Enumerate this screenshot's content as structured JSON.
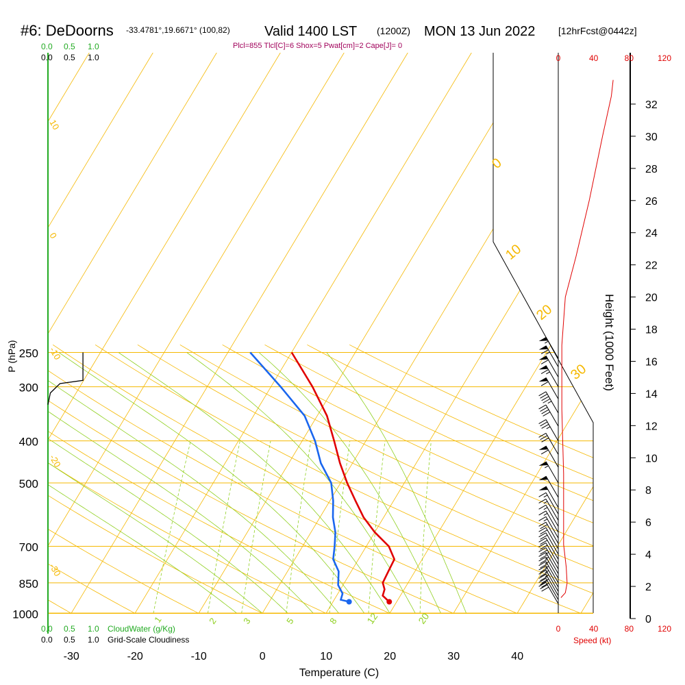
{
  "header": {
    "station": "#6: DeDoorns",
    "coords": "-33.4781°,19.6671° (100,82)",
    "valid": "Valid 1400 LST",
    "utc": "(1200Z)",
    "date": "MON 13 Jun 2022",
    "forecast": "[12hrFcst@0442z]",
    "indices": "Plcl=855 Tlcl[C]=6 Shox=5 Pwat[cm]=2 Cape[J]= 0"
  },
  "colors": {
    "isobar": "#f5b800",
    "dry_adiabat": "#f5b800",
    "moist_adiabat": "#8fd020",
    "mixing_ratio": "#8fd020",
    "temperature": "#e00000",
    "dewpoint": "#1a66ee",
    "wind_speed": "#e00000",
    "cloud": "#22aa22"
  },
  "chart_data": {
    "type": "line",
    "title": "#6: DeDoorns",
    "xlabel": "Temperature (C)",
    "ylabel": "P (hPa)",
    "y2label": "Height (1000 Feet)",
    "x_ticks": [
      "-30",
      "-20",
      "-10",
      "0",
      "10",
      "20",
      "30",
      "40"
    ],
    "y_ticks": [
      "250",
      "300",
      "400",
      "500",
      "700",
      "850",
      "1000"
    ],
    "height_ticks": [
      "0",
      "2",
      "4",
      "6",
      "8",
      "10",
      "12",
      "14",
      "16",
      "18",
      "20",
      "22",
      "24",
      "26",
      "28",
      "30",
      "32"
    ],
    "dry_adiabat_labels": [
      "10",
      "0",
      "-10",
      "-20",
      "-30",
      "0",
      "10",
      "20",
      "30"
    ],
    "moist_adiabat_labels": [
      "12",
      "20"
    ],
    "mixing_ratio_labels": [
      "1",
      "2",
      "3",
      "5",
      "8"
    ],
    "series": [
      {
        "name": "temperature",
        "points": [
          [
            18.8,
            940
          ],
          [
            17.2,
            910
          ],
          [
            16.9,
            880
          ],
          [
            16.0,
            850
          ],
          [
            15.8,
            800
          ],
          [
            15.6,
            750
          ],
          [
            13.5,
            700
          ],
          [
            10.0,
            650
          ],
          [
            6.8,
            600
          ],
          [
            4.0,
            550
          ],
          [
            1.0,
            500
          ],
          [
            -2.0,
            450
          ],
          [
            -5.0,
            400
          ],
          [
            -8.5,
            350
          ],
          [
            -13.5,
            300
          ],
          [
            -20.0,
            250
          ]
        ]
      },
      {
        "name": "dewpoint",
        "points": [
          [
            12.5,
            940
          ],
          [
            11.0,
            930
          ],
          [
            10.7,
            900
          ],
          [
            9.2,
            860
          ],
          [
            8.0,
            800
          ],
          [
            6.0,
            750
          ],
          [
            5.0,
            700
          ],
          [
            3.8,
            650
          ],
          [
            2.0,
            600
          ],
          [
            0.5,
            550
          ],
          [
            -1.5,
            500
          ],
          [
            -5.0,
            450
          ],
          [
            -8.0,
            400
          ],
          [
            -12.0,
            350
          ],
          [
            -18.5,
            300
          ],
          [
            -26.5,
            250
          ]
        ]
      },
      {
        "name": "wind_speed",
        "points": [
          [
            3,
            1.3
          ],
          [
            8,
            1.6
          ],
          [
            10,
            2.2
          ],
          [
            9,
            3.2
          ],
          [
            6,
            4.6
          ],
          [
            6,
            9
          ],
          [
            4,
            13
          ],
          [
            4,
            17
          ],
          [
            8,
            20
          ],
          [
            20,
            22.5
          ],
          [
            35,
            26
          ],
          [
            50,
            30
          ],
          [
            60,
            32.5
          ],
          [
            62,
            33.5
          ]
        ]
      },
      {
        "name": "cloud_water",
        "points": [
          [
            0.0,
            1000
          ],
          [
            0.0,
            250
          ]
        ]
      },
      {
        "name": "grid_scale_cloudiness",
        "points": [
          [
            0.0,
            330
          ],
          [
            0.05,
            310
          ],
          [
            0.25,
            295
          ],
          [
            0.73,
            290
          ],
          [
            0.73,
            250
          ]
        ]
      }
    ],
    "wind_barbs": [
      {
        "p": 950,
        "kt": 30
      },
      {
        "p": 930,
        "kt": 30
      },
      {
        "p": 910,
        "kt": 30
      },
      {
        "p": 890,
        "kt": 25
      },
      {
        "p": 870,
        "kt": 25
      },
      {
        "p": 850,
        "kt": 25
      },
      {
        "p": 830,
        "kt": 25
      },
      {
        "p": 810,
        "kt": 25
      },
      {
        "p": 790,
        "kt": 25
      },
      {
        "p": 770,
        "kt": 20
      },
      {
        "p": 750,
        "kt": 20
      },
      {
        "p": 730,
        "kt": 20
      },
      {
        "p": 710,
        "kt": 20
      },
      {
        "p": 690,
        "kt": 20
      },
      {
        "p": 670,
        "kt": 15
      },
      {
        "p": 650,
        "kt": 15
      },
      {
        "p": 630,
        "kt": 15
      },
      {
        "p": 610,
        "kt": 15
      },
      {
        "p": 590,
        "kt": 15
      },
      {
        "p": 570,
        "kt": 50
      },
      {
        "p": 540,
        "kt": 50
      },
      {
        "p": 500,
        "kt": 55
      },
      {
        "p": 460,
        "kt": 60
      },
      {
        "p": 430,
        "kt": 30
      },
      {
        "p": 400,
        "kt": 35
      },
      {
        "p": 370,
        "kt": 40
      },
      {
        "p": 345,
        "kt": 45
      },
      {
        "p": 320,
        "kt": 60
      },
      {
        "p": 300,
        "kt": 65
      },
      {
        "p": 285,
        "kt": 60
      },
      {
        "p": 270,
        "kt": 65
      },
      {
        "p": 258,
        "kt": 55
      }
    ],
    "legend": {
      "cloud_scale": [
        "0.0",
        "0.5",
        "1.0"
      ],
      "cloud_water": "CloudWater (g/Kg)",
      "grid_cloud": "Grid-Scale Cloudiness",
      "speed_ticks": [
        "0",
        "40",
        "80",
        "120"
      ],
      "speed_label": "Speed (kt)"
    }
  }
}
